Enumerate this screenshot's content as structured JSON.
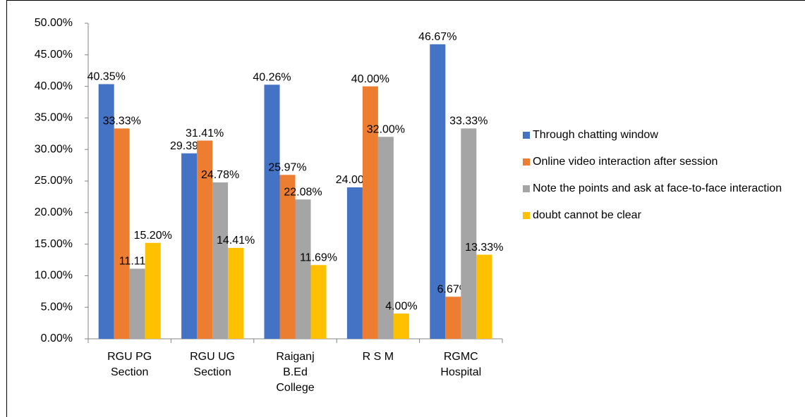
{
  "chart_data": {
    "type": "bar",
    "categories": [
      "RGU PG Section",
      "RGU UG Section",
      "Raiganj B.Ed College",
      "R S M",
      "RGMC Hospital"
    ],
    "series": [
      {
        "name": "Through chatting window",
        "color": "#4472c4",
        "values": [
          40.35,
          29.39,
          40.26,
          24.0,
          46.67
        ],
        "value_labels": [
          "40.35%",
          "29.39%",
          "40.26%",
          "24.00%",
          "46.67%"
        ]
      },
      {
        "name": "Online video interaction after session",
        "color": "#ed7d31",
        "values": [
          33.33,
          31.41,
          25.97,
          40.0,
          6.67
        ],
        "value_labels": [
          "33.33%",
          "31.41%",
          "25.97%",
          "40.00%",
          "6.67%"
        ]
      },
      {
        "name": "Note the points and ask at face-to-face interaction",
        "color": "#a5a5a5",
        "values": [
          11.11,
          24.78,
          22.08,
          32.0,
          33.33
        ],
        "value_labels": [
          "11.11%",
          "24.78%",
          "22.08%",
          "32.00%",
          "33.33%"
        ]
      },
      {
        "name": "doubt cannot be clear",
        "color": "#ffc000",
        "values": [
          15.2,
          14.41,
          11.69,
          4.0,
          13.33
        ],
        "value_labels": [
          "15.20%",
          "14.41%",
          "11.69%",
          "4.00%",
          "13.33%"
        ]
      }
    ],
    "ylim": [
      0,
      50
    ],
    "yticks": [
      {
        "value": 0,
        "label": "0.00%"
      },
      {
        "value": 5,
        "label": "5.00%"
      },
      {
        "value": 10,
        "label": "10.00%"
      },
      {
        "value": 15,
        "label": "15.00%"
      },
      {
        "value": 20,
        "label": "20.00%"
      },
      {
        "value": 25,
        "label": "25.00%"
      },
      {
        "value": 30,
        "label": "30.00%"
      },
      {
        "value": 35,
        "label": "35.00%"
      },
      {
        "value": 40,
        "label": "40.00%"
      },
      {
        "value": 45,
        "label": "45.00%"
      },
      {
        "value": 50,
        "label": "50.00%"
      }
    ],
    "grid": false,
    "legend": "right"
  }
}
